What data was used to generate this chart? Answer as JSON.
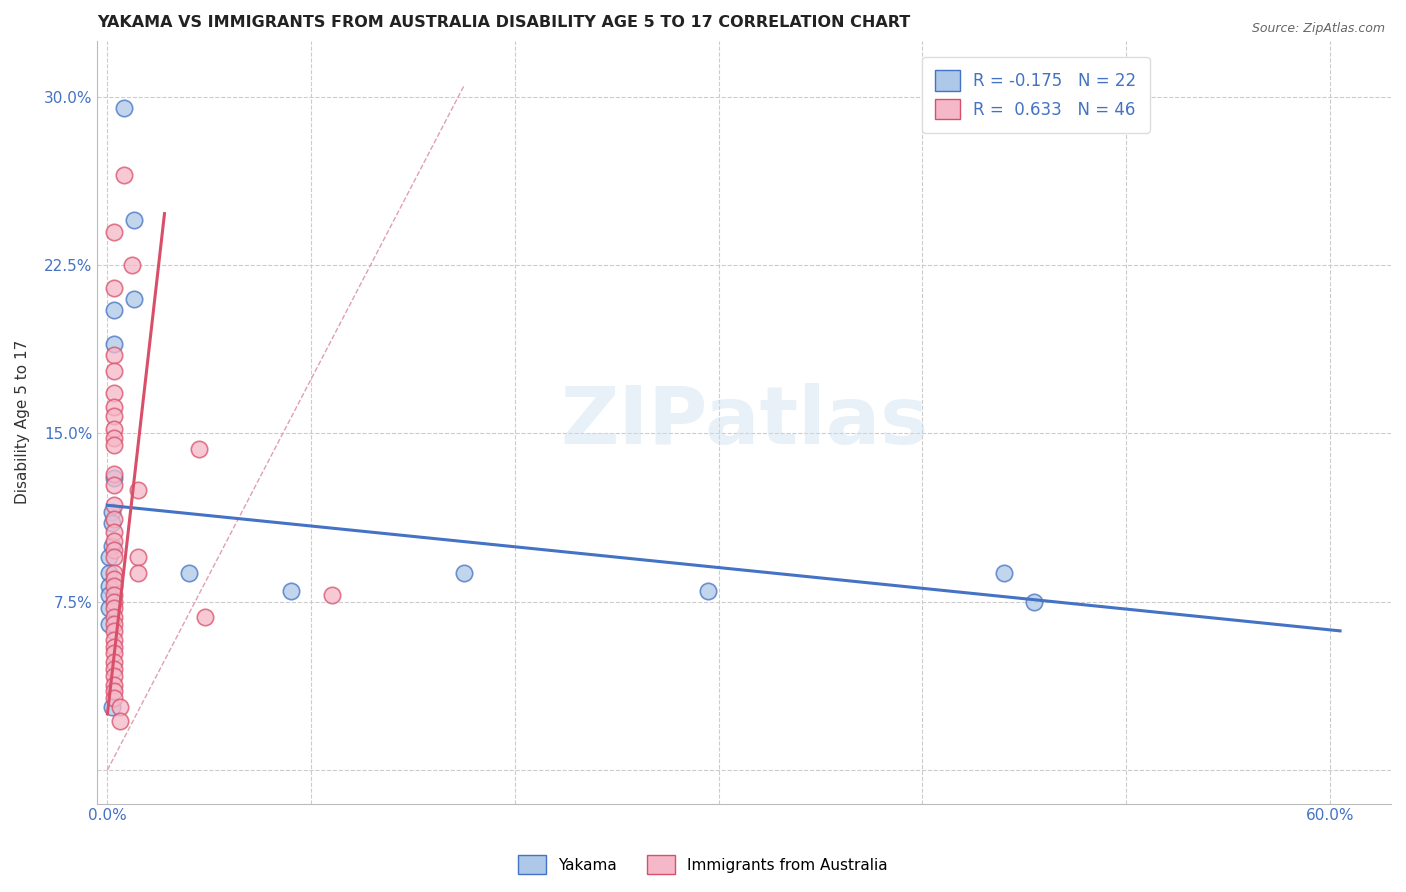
{
  "title": "YAKAMA VS IMMIGRANTS FROM AUSTRALIA DISABILITY AGE 5 TO 17 CORRELATION CHART",
  "source": "Source: ZipAtlas.com",
  "ylabel": "Disability Age 5 to 17",
  "x_ticks": [
    0.0,
    0.1,
    0.2,
    0.3,
    0.4,
    0.5,
    0.6
  ],
  "y_ticks": [
    0.0,
    0.075,
    0.15,
    0.225,
    0.3
  ],
  "xlim": [
    -0.005,
    0.63
  ],
  "ylim": [
    -0.015,
    0.325
  ],
  "blue_R": -0.175,
  "blue_N": 22,
  "pink_R": 0.633,
  "pink_N": 46,
  "blue_color": "#adc8e8",
  "pink_color": "#f5b8c8",
  "blue_line_color": "#4472c4",
  "pink_line_color": "#d94f6a",
  "diag_line_color": "#e0a0b0",
  "legend_label_blue": "Yakama",
  "legend_label_pink": "Immigrants from Australia",
  "watermark": "ZIPatlas",
  "blue_scatter_x": [
    0.008,
    0.013,
    0.013,
    0.003,
    0.003,
    0.003,
    0.002,
    0.002,
    0.002,
    0.001,
    0.001,
    0.001,
    0.001,
    0.001,
    0.001,
    0.04,
    0.09,
    0.175,
    0.295,
    0.44,
    0.455,
    0.002
  ],
  "blue_scatter_y": [
    0.295,
    0.245,
    0.21,
    0.205,
    0.19,
    0.13,
    0.115,
    0.11,
    0.1,
    0.095,
    0.088,
    0.082,
    0.078,
    0.072,
    0.065,
    0.088,
    0.08,
    0.088,
    0.08,
    0.088,
    0.075,
    0.028
  ],
  "pink_scatter_x": [
    0.008,
    0.012,
    0.003,
    0.003,
    0.003,
    0.003,
    0.003,
    0.003,
    0.003,
    0.003,
    0.003,
    0.003,
    0.003,
    0.003,
    0.003,
    0.003,
    0.003,
    0.003,
    0.003,
    0.003,
    0.003,
    0.003,
    0.003,
    0.003,
    0.003,
    0.003,
    0.003,
    0.003,
    0.003,
    0.003,
    0.003,
    0.003,
    0.003,
    0.003,
    0.003,
    0.003,
    0.003,
    0.003,
    0.015,
    0.015,
    0.015,
    0.045,
    0.11,
    0.048,
    0.006,
    0.006
  ],
  "pink_scatter_y": [
    0.265,
    0.225,
    0.24,
    0.215,
    0.185,
    0.178,
    0.168,
    0.162,
    0.158,
    0.152,
    0.148,
    0.145,
    0.132,
    0.127,
    0.118,
    0.112,
    0.106,
    0.102,
    0.098,
    0.095,
    0.088,
    0.085,
    0.082,
    0.078,
    0.075,
    0.072,
    0.068,
    0.065,
    0.062,
    0.058,
    0.055,
    0.052,
    0.048,
    0.045,
    0.042,
    0.038,
    0.035,
    0.032,
    0.095,
    0.088,
    0.125,
    0.143,
    0.078,
    0.068,
    0.028,
    0.022
  ],
  "blue_trendline_x": [
    0.0,
    0.605
  ],
  "blue_trendline_y": [
    0.118,
    0.062
  ],
  "pink_trendline_x": [
    0.0,
    0.028
  ],
  "pink_trendline_y": [
    0.025,
    0.248
  ],
  "diag_line_x": [
    0.0,
    0.175
  ],
  "diag_line_y": [
    0.0,
    0.305
  ]
}
